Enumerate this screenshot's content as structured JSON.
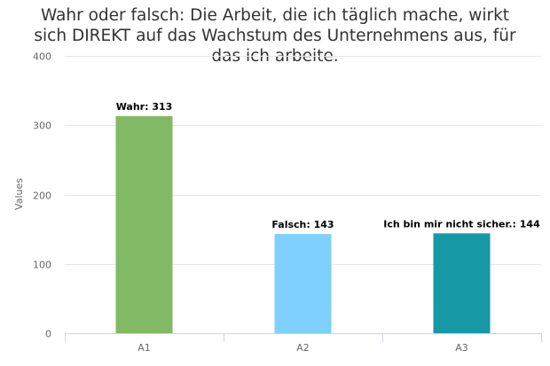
{
  "chart_data": {
    "type": "bar",
    "title_lines": [
      "Wahr oder falsch: Die Arbeit, die ich täglich mache, wirkt",
      "sich DIREKT auf das Wachstum des Unternehmens aus, für",
      "das ich arbeite."
    ],
    "xlabel": "",
    "ylabel": "Values",
    "categories": [
      "A1",
      "A2",
      "A3"
    ],
    "values": [
      313,
      143,
      144
    ],
    "data_labels": [
      "Wahr: 313",
      "Falsch: 143",
      "Ich bin mir nicht sicher.: 144"
    ],
    "bar_colors": [
      "#82b965",
      "#7fcfff",
      "#1699a4"
    ],
    "ylim": [
      0,
      400
    ],
    "yticks": [
      0,
      100,
      200,
      300,
      400
    ],
    "grid": true,
    "gridline_color": "#e6e6e6",
    "axis_color": "#ccd6eb"
  }
}
